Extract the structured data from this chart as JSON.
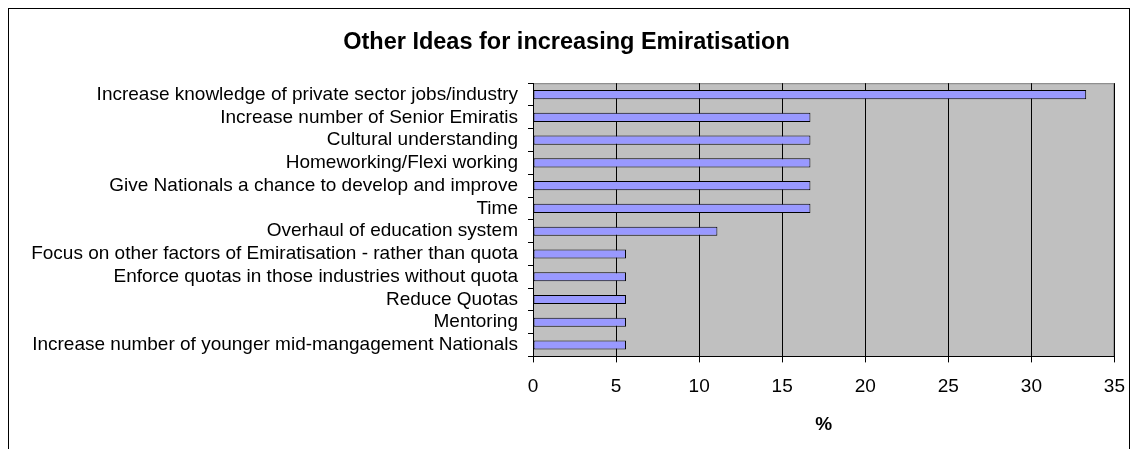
{
  "chart_data": {
    "type": "bar",
    "orientation": "horizontal",
    "title": "Other Ideas for increasing Emiratisation",
    "xlabel": "%",
    "categories": [
      "Increase knowledge of private sector jobs/industry",
      "Increase number of Senior Emiratis",
      "Cultural understanding",
      "Homeworking/Flexi working",
      "Give Nationals a chance to develop and improve",
      "Time",
      "Overhaul of education system",
      "Focus on other factors of Emiratisation - rather than quota",
      "Enforce quotas in those industries without quota",
      "Reduce Quotas",
      "Mentoring",
      "Increase number of younger mid-mangagement Nationals"
    ],
    "values": [
      33.3,
      16.7,
      16.7,
      16.7,
      16.7,
      16.7,
      11.1,
      5.6,
      5.6,
      5.6,
      5.6,
      5.6
    ],
    "color": "#9999ff",
    "xlim": [
      0,
      35
    ],
    "xticks": [
      0,
      5,
      10,
      15,
      20,
      25,
      30,
      35
    ],
    "grid": "x"
  }
}
